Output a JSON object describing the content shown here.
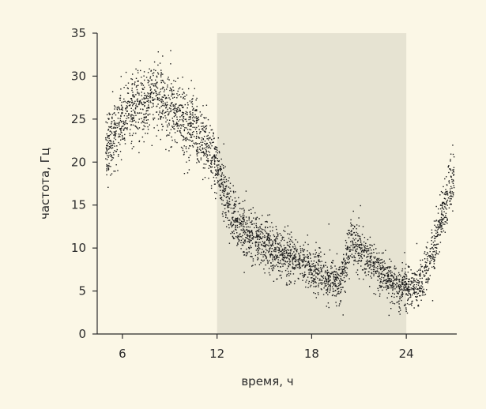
{
  "chart_data": {
    "type": "scatter",
    "title": "",
    "xlabel": "время, ч",
    "ylabel": "частота, Гц",
    "xlim": [
      4.4,
      27.2
    ],
    "ylim": [
      0,
      35
    ],
    "xticks": [
      6,
      12,
      18,
      24
    ],
    "xtick_labels": [
      "6",
      "12",
      "18",
      "24"
    ],
    "yticks": [
      0,
      5,
      10,
      15,
      20,
      25,
      30,
      35
    ],
    "ytick_labels": [
      "0",
      "5",
      "10",
      "15",
      "20",
      "25",
      "30",
      "35"
    ],
    "shaded_region": {
      "x_start": 12,
      "x_end": 24
    },
    "grid": false,
    "legend": "none",
    "colors": {
      "points": "#1a1a1a",
      "shade": "#e6e3d2",
      "axis": "#2b2b2b",
      "background": "#fbf7e6"
    },
    "trend": {
      "x": [
        4.9,
        5.5,
        6.0,
        6.5,
        7.0,
        7.5,
        8.0,
        8.5,
        9.0,
        9.5,
        10.0,
        10.5,
        11.0,
        11.5,
        12.0,
        12.5,
        13.0,
        14.0,
        15.0,
        16.0,
        17.0,
        18.0,
        19.0,
        19.8,
        20.2,
        20.5,
        21.0,
        21.5,
        22.0,
        22.5,
        23.0,
        23.5,
        24.0,
        24.5,
        25.0,
        25.5,
        26.0,
        26.5,
        27.0
      ],
      "y": [
        21.5,
        23.5,
        25.0,
        26.0,
        26.5,
        27.0,
        28.0,
        27.5,
        26.5,
        25.5,
        24.5,
        24.0,
        22.5,
        21.0,
        19.5,
        16.0,
        13.5,
        11.5,
        10.5,
        9.5,
        8.5,
        7.5,
        6.5,
        6.0,
        9.0,
        11.0,
        10.0,
        9.0,
        8.0,
        7.0,
        6.0,
        5.5,
        5.5,
        5.5,
        6.0,
        8.5,
        12.0,
        15.5,
        18.5
      ]
    }
  }
}
